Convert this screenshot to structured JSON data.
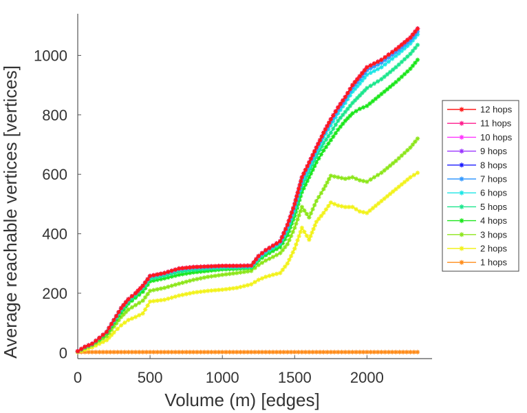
{
  "chart_data": {
    "type": "line",
    "title": "",
    "xlabel": "Volume (m) [edges]",
    "ylabel": "Average reachable vertices [vertices]",
    "xlim": [
      0,
      2450
    ],
    "ylim": [
      -20,
      1140
    ],
    "xticks": [
      0,
      500,
      1000,
      1500,
      2000
    ],
    "yticks": [
      0,
      200,
      400,
      600,
      800,
      1000
    ],
    "xtick_labels": [
      "0",
      "500",
      "1000",
      "1500",
      "2000"
    ],
    "ytick_labels": [
      "0",
      "200",
      "400",
      "600",
      "800",
      "1000"
    ],
    "grid": false,
    "legend_position": "right",
    "x": [
      0,
      50,
      100,
      150,
      200,
      250,
      300,
      350,
      400,
      450,
      500,
      600,
      700,
      800,
      900,
      1000,
      1100,
      1200,
      1250,
      1300,
      1350,
      1400,
      1450,
      1500,
      1550,
      1600,
      1650,
      1700,
      1750,
      1800,
      1850,
      1900,
      1950,
      2000,
      2100,
      2200,
      2300,
      2350
    ],
    "series": [
      {
        "name": "12 hops",
        "color": "#ff1a1a",
        "values": [
          5,
          20,
          30,
          50,
          70,
          110,
          150,
          180,
          200,
          225,
          258,
          268,
          283,
          288,
          290,
          292,
          292,
          293,
          325,
          345,
          360,
          375,
          430,
          500,
          590,
          640,
          690,
          740,
          785,
          825,
          860,
          900,
          930,
          960,
          985,
          1020,
          1060,
          1090
        ]
      },
      {
        "name": "11 hops",
        "color": "#ff1a8c",
        "values": [
          5,
          20,
          30,
          50,
          70,
          110,
          150,
          180,
          200,
          225,
          258,
          268,
          283,
          288,
          290,
          292,
          292,
          293,
          325,
          345,
          360,
          375,
          430,
          500,
          590,
          640,
          690,
          740,
          785,
          825,
          860,
          900,
          930,
          960,
          985,
          1020,
          1060,
          1090
        ]
      },
      {
        "name": "10 hops",
        "color": "#ff33ff",
        "values": [
          5,
          20,
          30,
          50,
          70,
          110,
          150,
          180,
          200,
          225,
          258,
          268,
          283,
          288,
          290,
          292,
          292,
          293,
          325,
          345,
          360,
          375,
          430,
          500,
          590,
          640,
          690,
          740,
          785,
          825,
          860,
          900,
          930,
          960,
          985,
          1020,
          1060,
          1090
        ]
      },
      {
        "name": "9 hops",
        "color": "#9933ff",
        "values": [
          5,
          20,
          30,
          50,
          70,
          110,
          150,
          180,
          200,
          225,
          258,
          268,
          283,
          288,
          290,
          292,
          292,
          293,
          325,
          345,
          360,
          375,
          430,
          500,
          590,
          640,
          690,
          740,
          785,
          825,
          860,
          900,
          930,
          960,
          985,
          1020,
          1060,
          1090
        ]
      },
      {
        "name": "8 hops",
        "color": "#1a1aff",
        "values": [
          5,
          20,
          30,
          50,
          70,
          110,
          150,
          180,
          200,
          225,
          258,
          268,
          283,
          288,
          290,
          292,
          292,
          293,
          325,
          345,
          360,
          375,
          430,
          500,
          590,
          640,
          690,
          740,
          785,
          825,
          860,
          900,
          930,
          960,
          985,
          1020,
          1060,
          1090
        ]
      },
      {
        "name": "7 hops",
        "color": "#3399ff",
        "values": [
          5,
          20,
          30,
          50,
          70,
          110,
          150,
          180,
          200,
          225,
          257,
          267,
          282,
          287,
          289,
          291,
          291,
          292,
          323,
          343,
          358,
          373,
          425,
          495,
          585,
          635,
          685,
          735,
          778,
          818,
          852,
          892,
          920,
          950,
          975,
          1010,
          1050,
          1080
        ]
      },
      {
        "name": "6 hops",
        "color": "#1ae6e6",
        "values": [
          5,
          20,
          30,
          50,
          70,
          108,
          148,
          178,
          198,
          222,
          255,
          265,
          280,
          285,
          287,
          289,
          289,
          290,
          320,
          340,
          355,
          370,
          420,
          490,
          575,
          625,
          675,
          725,
          765,
          805,
          840,
          878,
          905,
          935,
          960,
          998,
          1040,
          1070
        ]
      },
      {
        "name": "5 hops",
        "color": "#1ae68c",
        "values": [
          5,
          18,
          28,
          48,
          68,
          105,
          142,
          172,
          192,
          215,
          248,
          258,
          272,
          278,
          282,
          285,
          286,
          288,
          315,
          335,
          350,
          365,
          410,
          475,
          560,
          610,
          660,
          705,
          740,
          780,
          810,
          840,
          865,
          890,
          920,
          960,
          1005,
          1035
        ]
      },
      {
        "name": "4 hops",
        "color": "#1ae61a",
        "values": [
          5,
          18,
          28,
          45,
          65,
          100,
          135,
          165,
          185,
          205,
          240,
          250,
          262,
          270,
          275,
          280,
          282,
          285,
          310,
          328,
          342,
          355,
          395,
          460,
          540,
          590,
          640,
          680,
          715,
          750,
          780,
          805,
          820,
          830,
          870,
          910,
          955,
          985
        ]
      },
      {
        "name": "3 hops",
        "color": "#8ce61a",
        "values": [
          3,
          15,
          25,
          40,
          55,
          88,
          120,
          145,
          160,
          175,
          208,
          218,
          232,
          245,
          255,
          262,
          268,
          275,
          295,
          310,
          322,
          335,
          365,
          420,
          490,
          455,
          510,
          550,
          595,
          590,
          585,
          590,
          580,
          575,
          605,
          645,
          690,
          720
        ]
      },
      {
        "name": "2 hops",
        "color": "#f2f21a",
        "values": [
          2,
          10,
          18,
          30,
          42,
          68,
          92,
          110,
          120,
          132,
          172,
          178,
          192,
          202,
          208,
          212,
          218,
          230,
          245,
          255,
          262,
          268,
          300,
          350,
          420,
          380,
          440,
          470,
          505,
          495,
          490,
          490,
          475,
          470,
          510,
          550,
          590,
          605
        ]
      },
      {
        "name": "1 hops",
        "color": "#ff8c1a",
        "values": [
          2,
          2,
          2,
          2,
          2,
          2,
          2,
          2,
          2,
          2,
          2,
          2,
          2,
          2,
          2,
          2,
          2,
          2,
          2,
          2,
          2,
          2,
          2,
          2,
          2,
          2,
          2,
          2,
          2,
          2,
          2,
          2,
          2,
          2,
          2,
          2,
          2,
          2
        ]
      }
    ]
  }
}
